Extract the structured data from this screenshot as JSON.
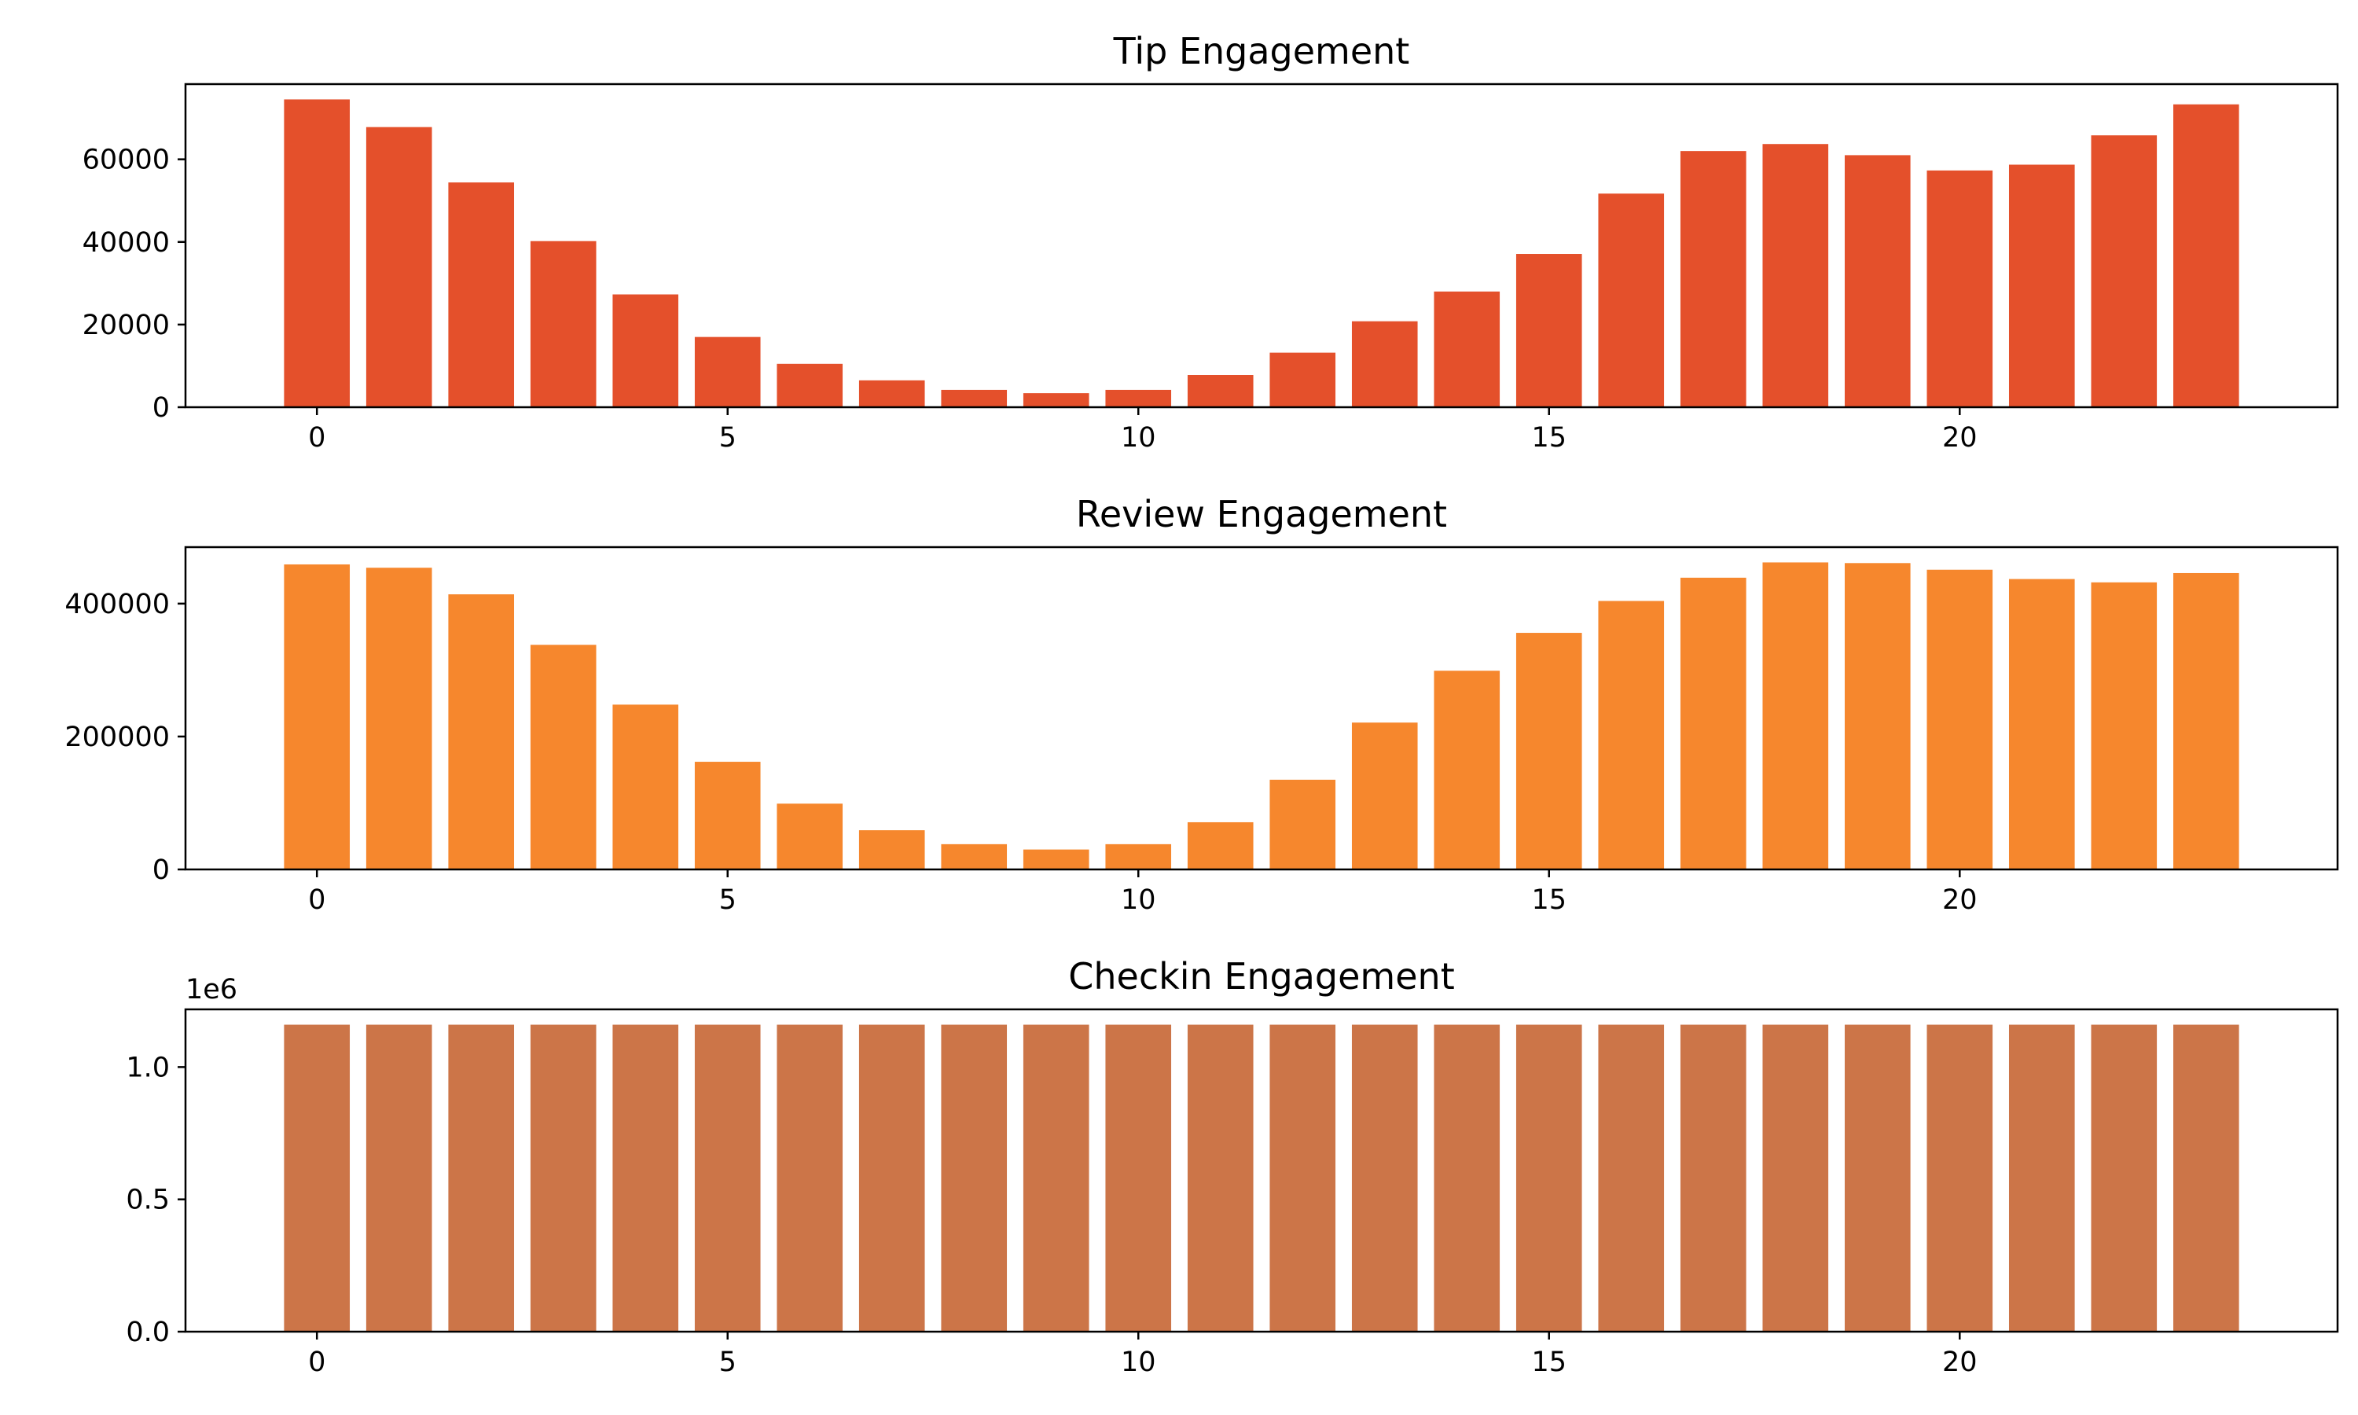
{
  "chart_data": [
    {
      "type": "bar",
      "title": "Tip Engagement",
      "xlabel": "",
      "ylabel": "",
      "color": "#e4502b",
      "categories": [
        0,
        1,
        2,
        3,
        4,
        5,
        6,
        7,
        8,
        9,
        10,
        11,
        12,
        13,
        14,
        15,
        16,
        17,
        18,
        19,
        20,
        21,
        22,
        23
      ],
      "values": [
        74500,
        67800,
        54400,
        40200,
        27300,
        17000,
        10500,
        6500,
        4200,
        3400,
        4200,
        7800,
        13200,
        20800,
        28000,
        37100,
        51700,
        62000,
        63700,
        61000,
        57300,
        58700,
        65800,
        73300
      ],
      "xlim": [
        -1.6,
        24.6
      ],
      "ylim": [
        0,
        78200
      ],
      "xticks": [
        0,
        5,
        10,
        15,
        20
      ],
      "yticks": [
        0,
        20000,
        40000,
        60000
      ],
      "ytick_labels": [
        "0",
        "20000",
        "40000",
        "60000"
      ],
      "offset_label": ""
    },
    {
      "type": "bar",
      "title": "Review Engagement",
      "xlabel": "",
      "ylabel": "",
      "color": "#f6872d",
      "categories": [
        0,
        1,
        2,
        3,
        4,
        5,
        6,
        7,
        8,
        9,
        10,
        11,
        12,
        13,
        14,
        15,
        16,
        17,
        18,
        19,
        20,
        21,
        22,
        23
      ],
      "values": [
        459000,
        454000,
        414000,
        338000,
        248000,
        162000,
        99000,
        59000,
        38000,
        30000,
        38000,
        71000,
        135000,
        221000,
        299000,
        356000,
        404000,
        439000,
        462000,
        461000,
        451000,
        437000,
        432000,
        446000
      ],
      "xlim": [
        -1.6,
        24.6
      ],
      "ylim": [
        0,
        485000
      ],
      "xticks": [
        0,
        5,
        10,
        15,
        20
      ],
      "yticks": [
        0,
        200000,
        400000
      ],
      "ytick_labels": [
        "0",
        "200000",
        "400000"
      ],
      "offset_label": ""
    },
    {
      "type": "bar",
      "title": "Checkin Engagement",
      "xlabel": "",
      "ylabel": "",
      "color": "#cc7548",
      "categories": [
        0,
        1,
        2,
        3,
        4,
        5,
        6,
        7,
        8,
        9,
        10,
        11,
        12,
        13,
        14,
        15,
        16,
        17,
        18,
        19,
        20,
        21,
        22,
        23
      ],
      "values": [
        1160000,
        1160000,
        1160000,
        1160000,
        1160000,
        1160000,
        1160000,
        1160000,
        1160000,
        1160000,
        1160000,
        1160000,
        1160000,
        1160000,
        1160000,
        1160000,
        1160000,
        1160000,
        1160000,
        1160000,
        1160000,
        1160000,
        1160000,
        1160000
      ],
      "xlim": [
        -1.6,
        24.6
      ],
      "ylim": [
        0,
        1218000
      ],
      "xticks": [
        0,
        5,
        10,
        15,
        20
      ],
      "yticks": [
        0,
        500000,
        1000000
      ],
      "ytick_labels": [
        "0.0",
        "0.5",
        "1.0"
      ],
      "offset_label": "1e6"
    }
  ]
}
